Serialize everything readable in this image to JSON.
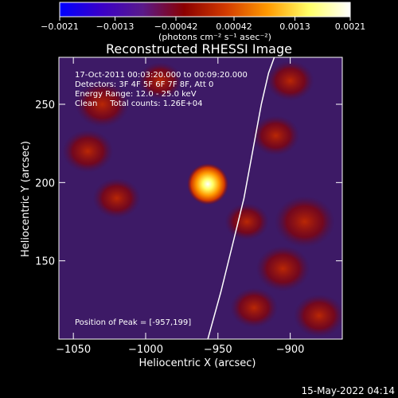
{
  "chart_data": {
    "type": "heatmap",
    "title": "Reconstructed RHESSI Image",
    "xlabel": "Heliocentric X (arcsec)",
    "ylabel": "Heliocentric Y (arcsec)",
    "xlim": [
      -1060,
      -864
    ],
    "ylim": [
      100,
      280
    ],
    "x_ticks": [
      -1050,
      -1000,
      -950,
      -900
    ],
    "x_tick_labels": [
      "−1050",
      "−1000",
      "−950",
      "−900"
    ],
    "y_ticks": [
      150,
      200,
      250
    ],
    "y_tick_labels": [
      "150",
      "200",
      "250"
    ],
    "colorbar": {
      "range": [
        -0.0021,
        0.0021
      ],
      "ticks": [
        -0.0021,
        -0.0013,
        -0.00042,
        0.00042,
        0.0013,
        0.0021
      ],
      "tick_labels": [
        "−0.0021",
        "−0.0013",
        "−0.00042",
        "0.00042",
        "0.0013",
        "0.0021"
      ],
      "unit_label": "(photons cm⁻² s⁻¹ asec⁻²)",
      "colors": [
        "#0000ff",
        "#3a00c8",
        "#5a1a8a",
        "#8a0000",
        "#d23a00",
        "#ff9900",
        "#ffff66",
        "#ffffff"
      ]
    },
    "annotations": [
      "17-Oct-2011 00:03:20.000 to 00:09:20.000",
      "Detectors: 3F 4F 5F 6F 7F 8F, Att 0",
      "Energy Range: 12.0 - 25.0 keV",
      "Clean     Total counts: 1.26E+04"
    ],
    "peak_label": "Position of Peak = [-957,199]",
    "peak": {
      "x": -957,
      "y": 199,
      "value": 0.0021
    },
    "limb_curve": {
      "x": [
        -957,
        -948,
        -940,
        -932,
        -926,
        -920,
        -915,
        -911
      ],
      "y": [
        100,
        130,
        160,
        190,
        220,
        250,
        270,
        280
      ]
    },
    "red_blobs": [
      {
        "x": -1030,
        "y": 250,
        "value": 0.0006
      },
      {
        "x": -1040,
        "y": 220,
        "value": 0.0005
      },
      {
        "x": -1020,
        "y": 190,
        "value": 0.0004
      },
      {
        "x": -990,
        "y": 265,
        "value": 0.0003
      },
      {
        "x": -900,
        "y": 265,
        "value": 0.0004
      },
      {
        "x": -910,
        "y": 230,
        "value": 0.0004
      },
      {
        "x": -890,
        "y": 175,
        "value": 0.0008
      },
      {
        "x": -905,
        "y": 145,
        "value": 0.0006
      },
      {
        "x": -880,
        "y": 115,
        "value": 0.0005
      },
      {
        "x": -930,
        "y": 175,
        "value": 0.0003
      },
      {
        "x": -925,
        "y": 120,
        "value": 0.0004
      }
    ],
    "grid": false,
    "legend": "colorbar-top"
  },
  "timestamp": "15-May-2022 04:14"
}
